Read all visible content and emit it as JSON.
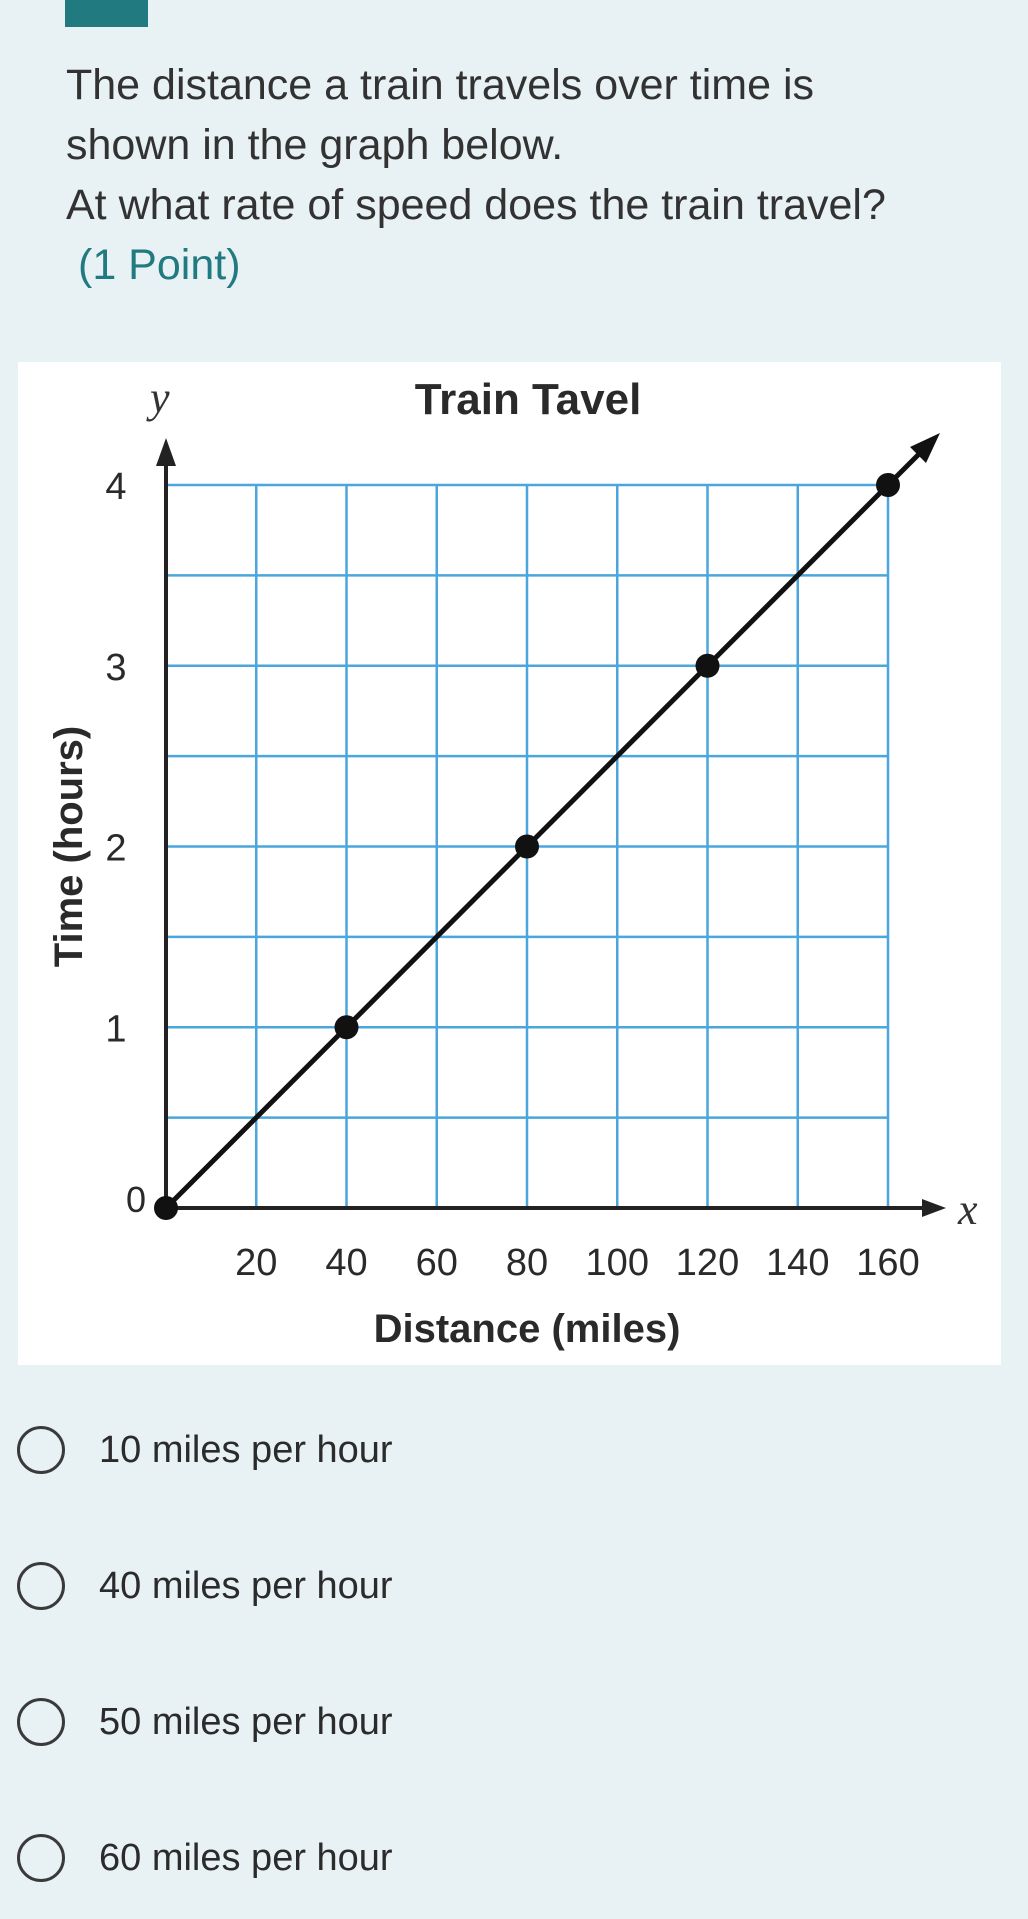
{
  "question": {
    "lines": [
      "The distance a train travels over time is",
      "shown in the graph below.",
      "At what rate of speed does the train travel?"
    ],
    "points": "(1 Point)"
  },
  "chart_data": {
    "type": "line",
    "title": "Train Tavel",
    "xlabel": "Distance (miles)",
    "ylabel": "Time (hours)",
    "x_axis_letter": "x",
    "y_axis_letter": "y",
    "origin_label": "0",
    "x_ticks": [
      20,
      40,
      60,
      80,
      100,
      120,
      140,
      160
    ],
    "y_ticks": [
      1,
      2,
      3,
      4
    ],
    "xlim": [
      0,
      160
    ],
    "ylim": [
      0,
      4
    ],
    "grid": true,
    "grid_color": "#4aa6dc",
    "series": [
      {
        "x": [
          0,
          40,
          80,
          120,
          160
        ],
        "y": [
          0,
          1,
          2,
          3,
          4
        ]
      }
    ]
  },
  "options": [
    {
      "label": "10 miles per hour"
    },
    {
      "label": "40 miles per hour"
    },
    {
      "label": "50 miles per hour"
    },
    {
      "label": "60 miles per hour"
    }
  ],
  "colors": {
    "accent": "#207a80",
    "background": "#e8f1f4"
  }
}
